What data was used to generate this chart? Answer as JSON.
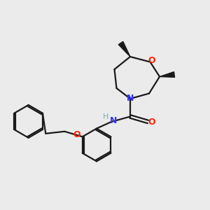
{
  "bg_color": "#ebebeb",
  "bond_color": "#1a1a1a",
  "N_color": "#3333ff",
  "O_color": "#ff2200",
  "H_color": "#7aacac",
  "linewidth": 1.6,
  "figsize": [
    3.0,
    3.0
  ],
  "dpi": 100,
  "xlim": [
    0,
    10
  ],
  "ylim": [
    0,
    10
  ]
}
